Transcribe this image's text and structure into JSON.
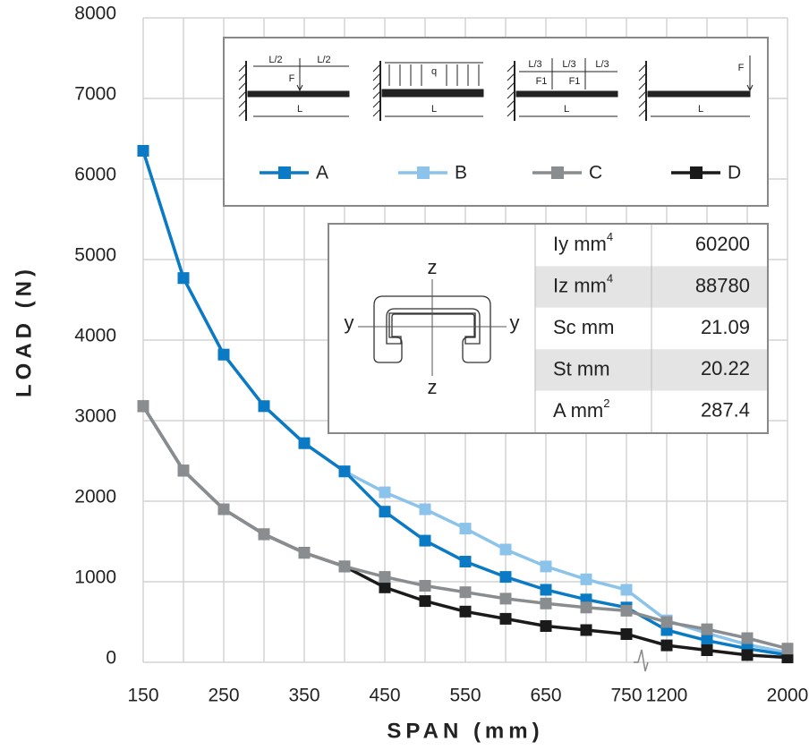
{
  "chart_data": {
    "type": "line",
    "ylabel": "LOAD (N)",
    "xlabel": "SPAN (mm)",
    "categories": [
      "150",
      null,
      "250",
      null,
      "350",
      null,
      "450",
      null,
      "550",
      null,
      "650",
      null,
      "750",
      "1200",
      null,
      null,
      "2000"
    ],
    "ylim": [
      0,
      8000
    ],
    "yticks": [
      0,
      1000,
      2000,
      3000,
      4000,
      5000,
      6000,
      7000,
      8000
    ],
    "grid": true,
    "series": [
      {
        "name": "B",
        "color": "#8cc3ea",
        "values": [
          6350,
          4770,
          3820,
          3180,
          2720,
          2370,
          2110,
          1900,
          1660,
          1400,
          1190,
          1030,
          900,
          520,
          360,
          220,
          120
        ]
      },
      {
        "name": "A",
        "color": "#0a7ac4",
        "values": [
          6350,
          4770,
          3820,
          3180,
          2720,
          2370,
          1870,
          1510,
          1250,
          1060,
          900,
          780,
          680,
          400,
          270,
          170,
          90
        ]
      },
      {
        "name": "D",
        "color": "#1a1a1a",
        "values": [
          3180,
          2380,
          1900,
          1590,
          1360,
          1190,
          930,
          760,
          630,
          540,
          450,
          400,
          350,
          210,
          150,
          90,
          60
        ]
      },
      {
        "name": "C",
        "color": "#8a8d90",
        "values": [
          3180,
          2380,
          1900,
          1590,
          1360,
          1190,
          1060,
          950,
          870,
          790,
          730,
          680,
          640,
          500,
          410,
          300,
          170
        ]
      }
    ],
    "legend_order": [
      1,
      0,
      3,
      2
    ]
  },
  "diagrams": {
    "d1": [
      "L/2",
      "L/2",
      "F",
      "L"
    ],
    "d2": [
      "q",
      "L"
    ],
    "d3": [
      "L/3",
      "L/3",
      "L/3",
      "F1",
      "F1",
      "L"
    ],
    "d4": [
      "F",
      "L"
    ]
  },
  "section": {
    "top": "z",
    "bottom": "z",
    "left": "y",
    "right": "y"
  },
  "table": {
    "rows": [
      {
        "label": "Iy  mm",
        "sup": "4",
        "value": 60200
      },
      {
        "label": "Iz  mm",
        "sup": "4",
        "value": 88780
      },
      {
        "label": "Sc mm",
        "value": 21.09
      },
      {
        "label": "St  mm",
        "value": 20.22
      },
      {
        "label": "A   mm",
        "sup": "2",
        "value": 287.4
      }
    ]
  }
}
